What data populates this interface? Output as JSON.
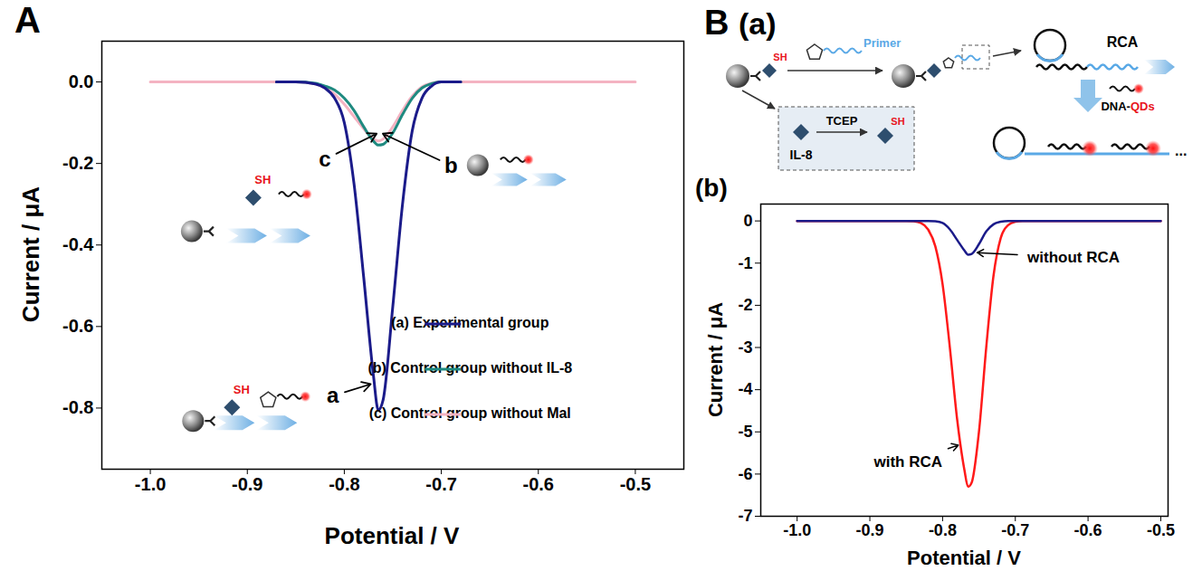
{
  "chart_data": [
    {
      "type": "line",
      "title": "A",
      "x_label": "Potential / V",
      "y_label": "Current / μA",
      "xlim": [
        -1.05,
        -0.45
      ],
      "ylim": [
        -0.95,
        0.1
      ],
      "xticks": [
        {
          "value": -1,
          "label": "-1.0"
        },
        -0.9,
        -0.8,
        -0.7,
        -0.6,
        -0.5
      ],
      "yticks": [
        {
          "value": 0,
          "label": "0.0"
        },
        -0.2,
        -0.4,
        -0.6,
        -0.8
      ],
      "legend": "lower right",
      "x": [
        -1.0,
        -0.95,
        -0.9,
        -0.87,
        -0.85,
        -0.83,
        -0.82,
        -0.81,
        -0.8,
        -0.79,
        -0.78,
        -0.77,
        -0.765,
        -0.76,
        -0.75,
        -0.74,
        -0.73,
        -0.72,
        -0.71,
        -0.7,
        -0.68,
        -0.6,
        -0.55,
        -0.5
      ],
      "series": [
        {
          "name": "(a) Experimental group",
          "color": "#1b1b8a",
          "values": [
            null,
            null,
            null,
            0,
            0,
            -0.005,
            -0.015,
            -0.04,
            -0.1,
            -0.25,
            -0.48,
            -0.72,
            -0.805,
            -0.78,
            -0.55,
            -0.3,
            -0.12,
            -0.04,
            -0.01,
            0,
            0,
            null,
            null,
            null
          ]
        },
        {
          "name": "(b) Control group without IL-8",
          "color": "#1f8a80",
          "values": [
            null,
            null,
            null,
            0,
            0,
            -0.003,
            -0.01,
            -0.02,
            -0.04,
            -0.07,
            -0.11,
            -0.145,
            -0.155,
            -0.153,
            -0.125,
            -0.08,
            -0.04,
            -0.015,
            -0.004,
            0,
            0,
            null,
            null,
            null
          ]
        },
        {
          "name": "(c) Control group without Mal",
          "color": "#f4b3c2",
          "values": [
            0,
            0,
            0,
            0,
            0,
            -0.005,
            -0.015,
            -0.03,
            -0.055,
            -0.085,
            -0.115,
            -0.14,
            -0.145,
            -0.14,
            -0.11,
            -0.07,
            -0.035,
            -0.012,
            -0.003,
            0,
            0,
            0,
            0,
            0
          ]
        }
      ],
      "annotations": [
        {
          "text": "a",
          "x": -0.812,
          "y": -0.77,
          "arrow_to": [
            -0.771,
            -0.74
          ]
        },
        {
          "text": "b",
          "x": -0.69,
          "y": -0.205,
          "arrow_to": [
            -0.762,
            -0.125
          ]
        },
        {
          "text": "c",
          "x": -0.82,
          "y": -0.19,
          "arrow_to": [
            -0.765,
            -0.125
          ]
        },
        {
          "text": "SH",
          "x": -0.884,
          "y": -0.241,
          "color": "#e8141b"
        },
        {
          "text": "SH",
          "x": -0.906,
          "y": -0.755,
          "color": "#e8141b"
        }
      ]
    },
    {
      "type": "line",
      "title": "(b)",
      "x_label": "Potential / V",
      "y_label": "Current / μA",
      "xlim": [
        -1.05,
        -0.49
      ],
      "ylim": [
        -7,
        0.4
      ],
      "xticks": [
        {
          "value": -1,
          "label": "-1.0"
        },
        -0.9,
        -0.8,
        -0.7,
        -0.6,
        -0.5
      ],
      "yticks": [
        0,
        -1,
        -2,
        -3,
        -4,
        -5,
        -6,
        -7
      ],
      "x": [
        -1.0,
        -0.9,
        -0.85,
        -0.84,
        -0.83,
        -0.82,
        -0.81,
        -0.8,
        -0.79,
        -0.78,
        -0.77,
        -0.765,
        -0.76,
        -0.75,
        -0.74,
        -0.73,
        -0.72,
        -0.71,
        -0.7,
        -0.69,
        -0.6,
        -0.5
      ],
      "series": [
        {
          "name": "without RCA",
          "color": "#1b1b8a",
          "label_at": [
            -0.62,
            -0.87
          ],
          "arrow_to": [
            -0.755,
            -0.75
          ],
          "values": [
            0,
            0,
            0,
            0,
            0,
            0,
            -0.01,
            -0.05,
            -0.2,
            -0.45,
            -0.7,
            -0.8,
            -0.78,
            -0.55,
            -0.25,
            -0.08,
            -0.02,
            0,
            0,
            0,
            0,
            0
          ]
        },
        {
          "name": "with RCA",
          "color": "#ff1a1a",
          "label_at": [
            -0.8475,
            -5.72
          ],
          "arrow_to": [
            -0.776,
            -5.3
          ],
          "values": [
            0,
            0,
            0,
            -0.01,
            -0.05,
            -0.2,
            -0.6,
            -1.5,
            -3.0,
            -4.7,
            -5.9,
            -6.3,
            -6.2,
            -5.0,
            -3.0,
            -1.3,
            -0.4,
            -0.1,
            -0.02,
            0,
            0,
            0
          ]
        }
      ]
    }
  ],
  "diagram": {
    "label": "B",
    "sublabel": "(a)",
    "primer": "Primer",
    "rca": "RCA",
    "probe": "DNA-QDs",
    "protein": "IL-8",
    "reductant": "TCEP",
    "thiol": "SH",
    "continuation": "..."
  }
}
